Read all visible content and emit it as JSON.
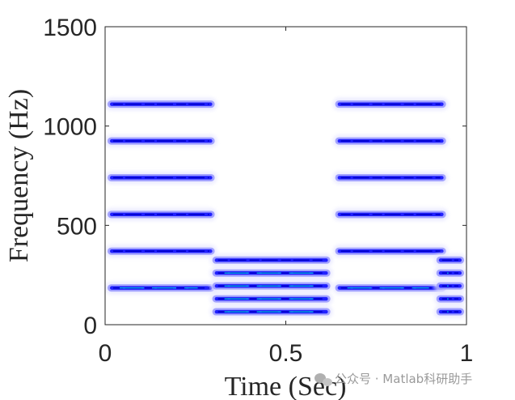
{
  "chart_data": {
    "type": "heatmap",
    "title": "",
    "xlabel": "Time (Sec)",
    "ylabel": "Frequency (Hz)",
    "xlim": [
      0,
      1
    ],
    "ylim": [
      0,
      1500
    ],
    "xticks": [
      0,
      0.5,
      1
    ],
    "xtick_labels": [
      "0",
      "0.5",
      "1"
    ],
    "yticks": [
      0,
      500,
      1000,
      1500
    ],
    "ytick_labels": [
      "0",
      "500",
      "1000",
      "1500"
    ],
    "grid": false,
    "colormap": [
      "#ffffff",
      "#e6e6ff",
      "#9999ff",
      "#2020ff",
      "#0000c8",
      "#00ccdd"
    ],
    "segments": [
      {
        "t_start": 0.0,
        "t_end": 0.31,
        "harmonics_hz": [
          185,
          370,
          555,
          740,
          925,
          1110
        ]
      },
      {
        "t_start": 0.29,
        "t_end": 0.63,
        "harmonics_hz": [
          65,
          130,
          195,
          260,
          325
        ]
      },
      {
        "t_start": 0.63,
        "t_end": 0.95,
        "harmonics_hz": [
          185,
          370,
          555,
          740,
          925,
          1110
        ]
      },
      {
        "t_start": 0.91,
        "t_end": 1.0,
        "harmonics_hz": [
          65,
          130,
          195,
          260,
          325
        ]
      }
    ]
  },
  "watermark": {
    "text": "公众号 · Matlab科研助手",
    "icon": "chat-bubble-icon"
  }
}
